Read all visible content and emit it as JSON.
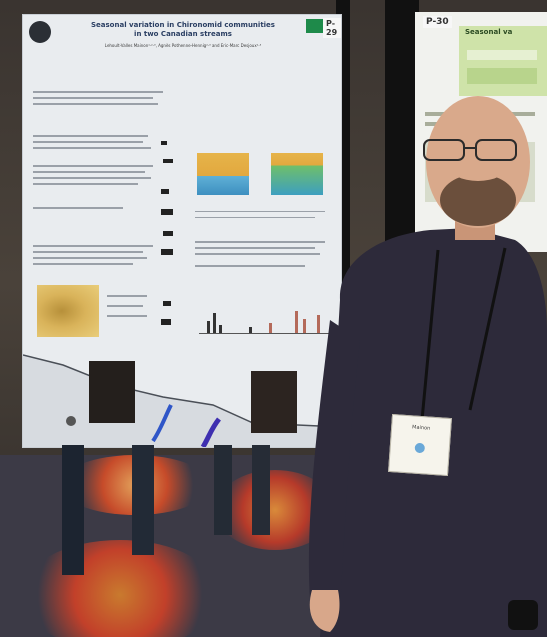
{
  "poster_left": {
    "number": "P-29",
    "title_line1": "Seasonal variation in Chironomid communities",
    "title_line2": "in two Canadian streams",
    "authors": "Lehoult-Valles Mainon¹·²·³, Agnès Pothenne-Hennig²·³ and Eric-Marc Desjoux¹·³"
  },
  "poster_right": {
    "number": "P-30",
    "title": "Seasonal va"
  },
  "badge": {
    "name": "Mainon"
  }
}
